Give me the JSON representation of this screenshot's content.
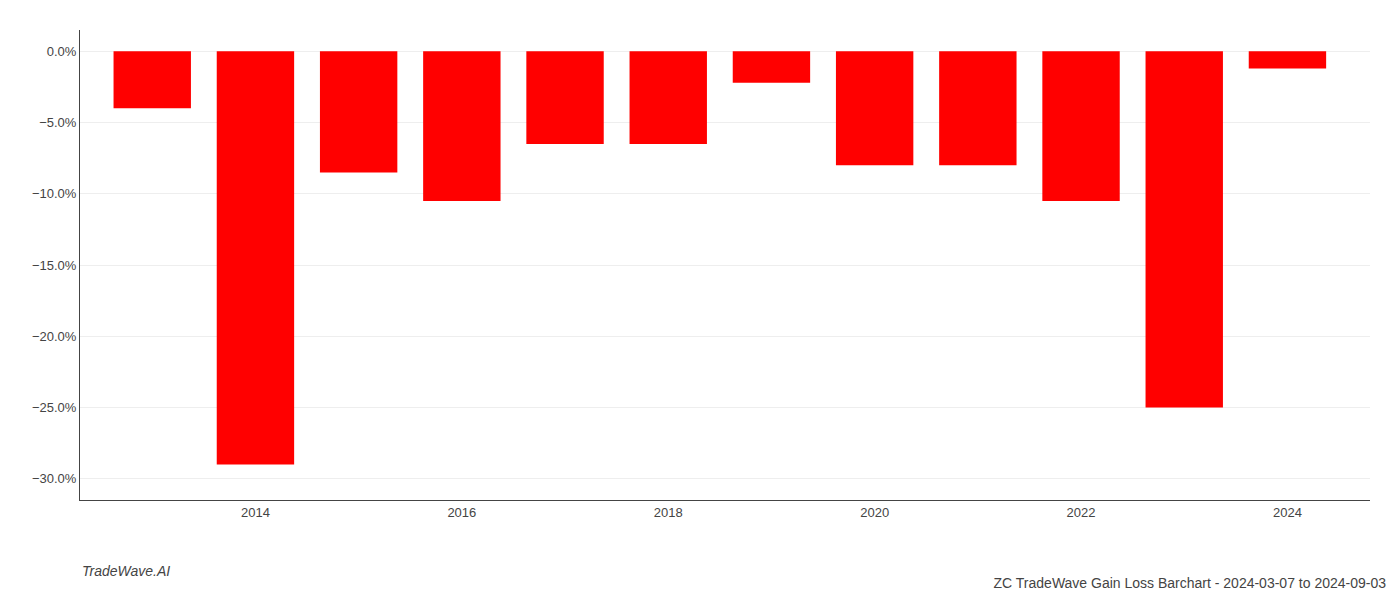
{
  "chart_data": {
    "type": "bar",
    "title": "ZC TradeWave Gain Loss Barchart - 2024-03-07 to 2024-09-03",
    "annotations": [
      "TradeWave.AI"
    ],
    "x": [
      2013,
      2014,
      2015,
      2016,
      2017,
      2018,
      2019,
      2020,
      2021,
      2022,
      2023,
      2024
    ],
    "values": [
      -4.0,
      -29.0,
      -8.5,
      -10.5,
      -6.5,
      -6.5,
      -2.2,
      -8.0,
      -8.0,
      -10.5,
      -25.0,
      -1.2
    ],
    "color": "#ff0000",
    "xlim": [
      2012.3,
      2024.8
    ],
    "xticks": [
      2014,
      2016,
      2018,
      2020,
      2022,
      2024
    ],
    "ylim": [
      -31.5,
      1.5
    ],
    "yticks": [
      {
        "value": 0.0,
        "label": "0.0%"
      },
      {
        "value": -5.0,
        "label": "−5.0%"
      },
      {
        "value": -10.0,
        "label": "−10.0%"
      },
      {
        "value": -15.0,
        "label": "−15.0%"
      },
      {
        "value": -20.0,
        "label": "−20.0%"
      },
      {
        "value": -25.0,
        "label": "−25.0%"
      },
      {
        "value": -30.0,
        "label": "−30.0%"
      }
    ],
    "grid": "y"
  }
}
